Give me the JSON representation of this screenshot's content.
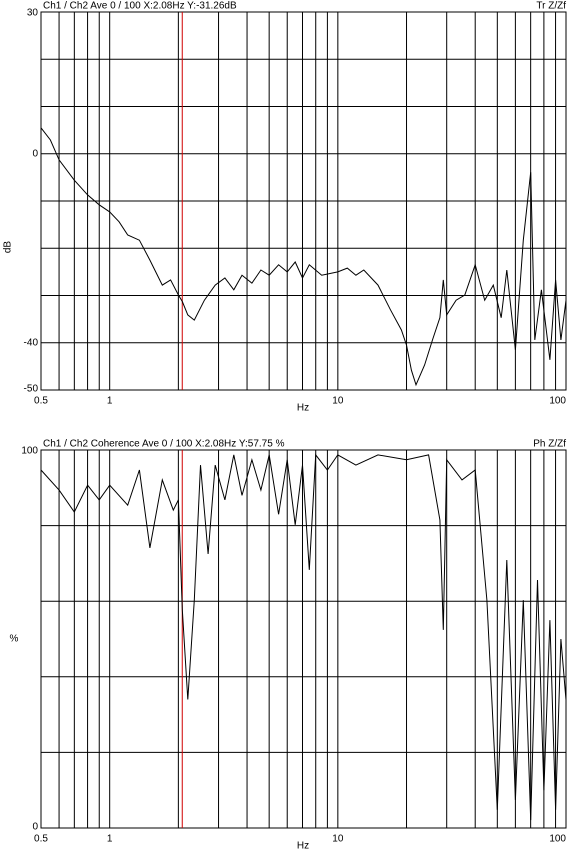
{
  "chart_data": [
    {
      "type": "line",
      "title": "Ch1 / Ch2  Ave 0 / 100  X:2.08Hz  Y:-31.26dB",
      "annotation": "Tr Z/Zf",
      "xlabel": "Hz",
      "ylabel": "dB",
      "log_x": true,
      "xlim": [
        0.5,
        100
      ],
      "xticks": [
        0.5,
        1,
        10,
        100
      ],
      "xgrid": [
        0.5,
        0.6,
        0.7,
        0.8,
        0.9,
        1,
        2,
        3,
        4,
        5,
        6,
        7,
        8,
        9,
        10,
        20,
        30,
        40,
        50,
        60,
        70,
        80,
        90,
        100
      ],
      "ylim": [
        -50,
        30
      ],
      "yticks": [
        30,
        0,
        -40,
        -50
      ],
      "ygrid": [
        30,
        20,
        10,
        0,
        -10,
        -20,
        -30,
        -40,
        -50
      ],
      "cursor": 2.08,
      "cursor_color": "#d00000",
      "color": "#000000",
      "x": [
        0.5,
        0.55,
        0.6,
        0.7,
        0.8,
        0.9,
        1.0,
        1.1,
        1.2,
        1.35,
        1.5,
        1.7,
        1.85,
        2.0,
        2.08,
        2.2,
        2.35,
        2.6,
        2.9,
        3.2,
        3.5,
        3.8,
        4.2,
        4.6,
        5.0,
        5.5,
        6.0,
        6.5,
        7,
        7.5,
        8.5,
        10,
        11,
        12,
        13,
        15,
        17,
        19,
        20,
        21,
        22,
        24,
        26,
        28,
        29,
        30,
        33,
        36,
        40,
        44,
        48,
        52,
        55,
        60,
        65,
        70,
        73,
        78,
        85,
        90,
        95,
        100
      ],
      "values": [
        5.5,
        2.9,
        -1.3,
        -5.6,
        -8.7,
        -10.8,
        -12.3,
        -14.4,
        -17.2,
        -18.3,
        -22.5,
        -27.8,
        -26.7,
        -29.9,
        -31.26,
        -34.1,
        -35.2,
        -31,
        -27.8,
        -26.3,
        -28.8,
        -25.7,
        -27.4,
        -24.6,
        -25.7,
        -23.5,
        -25,
        -22.9,
        -26.3,
        -23.5,
        -25.7,
        -25,
        -24.2,
        -25.7,
        -24.6,
        -27.8,
        -33,
        -37.3,
        -40.5,
        -45.8,
        -48.9,
        -44.7,
        -39.4,
        -34.7,
        -26.7,
        -34.1,
        -31,
        -29.9,
        -23.5,
        -31,
        -27.8,
        -34.7,
        -24.6,
        -41.5,
        -18.3,
        -3.9,
        -39.4,
        -28.8,
        -43.6,
        -26.7,
        -39.4,
        -31
      ]
    },
    {
      "type": "line",
      "title": "Ch1 / Ch2  Coherence Ave 0 / 100  X:2.08Hz  Y:57.75 %",
      "annotation": "Ph Z/Zf",
      "xlabel": "Hz",
      "ylabel": "%",
      "log_x": true,
      "xlim": [
        0.5,
        100
      ],
      "xticks": [
        0.5,
        1,
        10,
        100
      ],
      "xgrid": [
        0.5,
        0.6,
        0.7,
        0.8,
        0.9,
        1,
        2,
        3,
        4,
        5,
        6,
        7,
        8,
        9,
        10,
        20,
        30,
        40,
        50,
        60,
        70,
        80,
        90,
        100
      ],
      "ylim": [
        0,
        100
      ],
      "yticks": [
        100,
        0
      ],
      "ygrid": [
        0,
        20,
        40,
        60,
        80,
        100
      ],
      "cursor": 2.08,
      "cursor_color": "#d00000",
      "color": "#000000",
      "x": [
        0.5,
        0.6,
        0.7,
        0.8,
        0.9,
        1.0,
        1.2,
        1.35,
        1.5,
        1.7,
        1.9,
        2.0,
        2.08,
        2.2,
        2.35,
        2.5,
        2.7,
        2.9,
        3.2,
        3.5,
        3.8,
        4.2,
        4.6,
        5.0,
        5.5,
        6.0,
        6.5,
        7.0,
        7.5,
        8.0,
        9,
        10,
        12,
        15,
        20,
        25,
        28,
        29,
        30,
        35,
        40,
        45,
        50,
        55,
        60,
        65,
        70,
        75,
        80,
        85,
        90,
        95,
        100
      ],
      "values": [
        94.7,
        89.4,
        83.6,
        90.7,
        86.8,
        90.7,
        85.4,
        94.7,
        74.1,
        92.1,
        84.1,
        86.8,
        57.75,
        34,
        60.3,
        96,
        72.5,
        96,
        86.8,
        98.7,
        88,
        97.4,
        89.4,
        98.7,
        83,
        97.4,
        80.2,
        96,
        68.3,
        98.7,
        94.7,
        98.7,
        96,
        98.7,
        97.4,
        98.7,
        81.5,
        52.4,
        97.4,
        92.1,
        94.7,
        60.3,
        4.8,
        70.9,
        7.4,
        60.3,
        2.1,
        65.6,
        10,
        55,
        4.8,
        50,
        33.9
      ]
    }
  ]
}
